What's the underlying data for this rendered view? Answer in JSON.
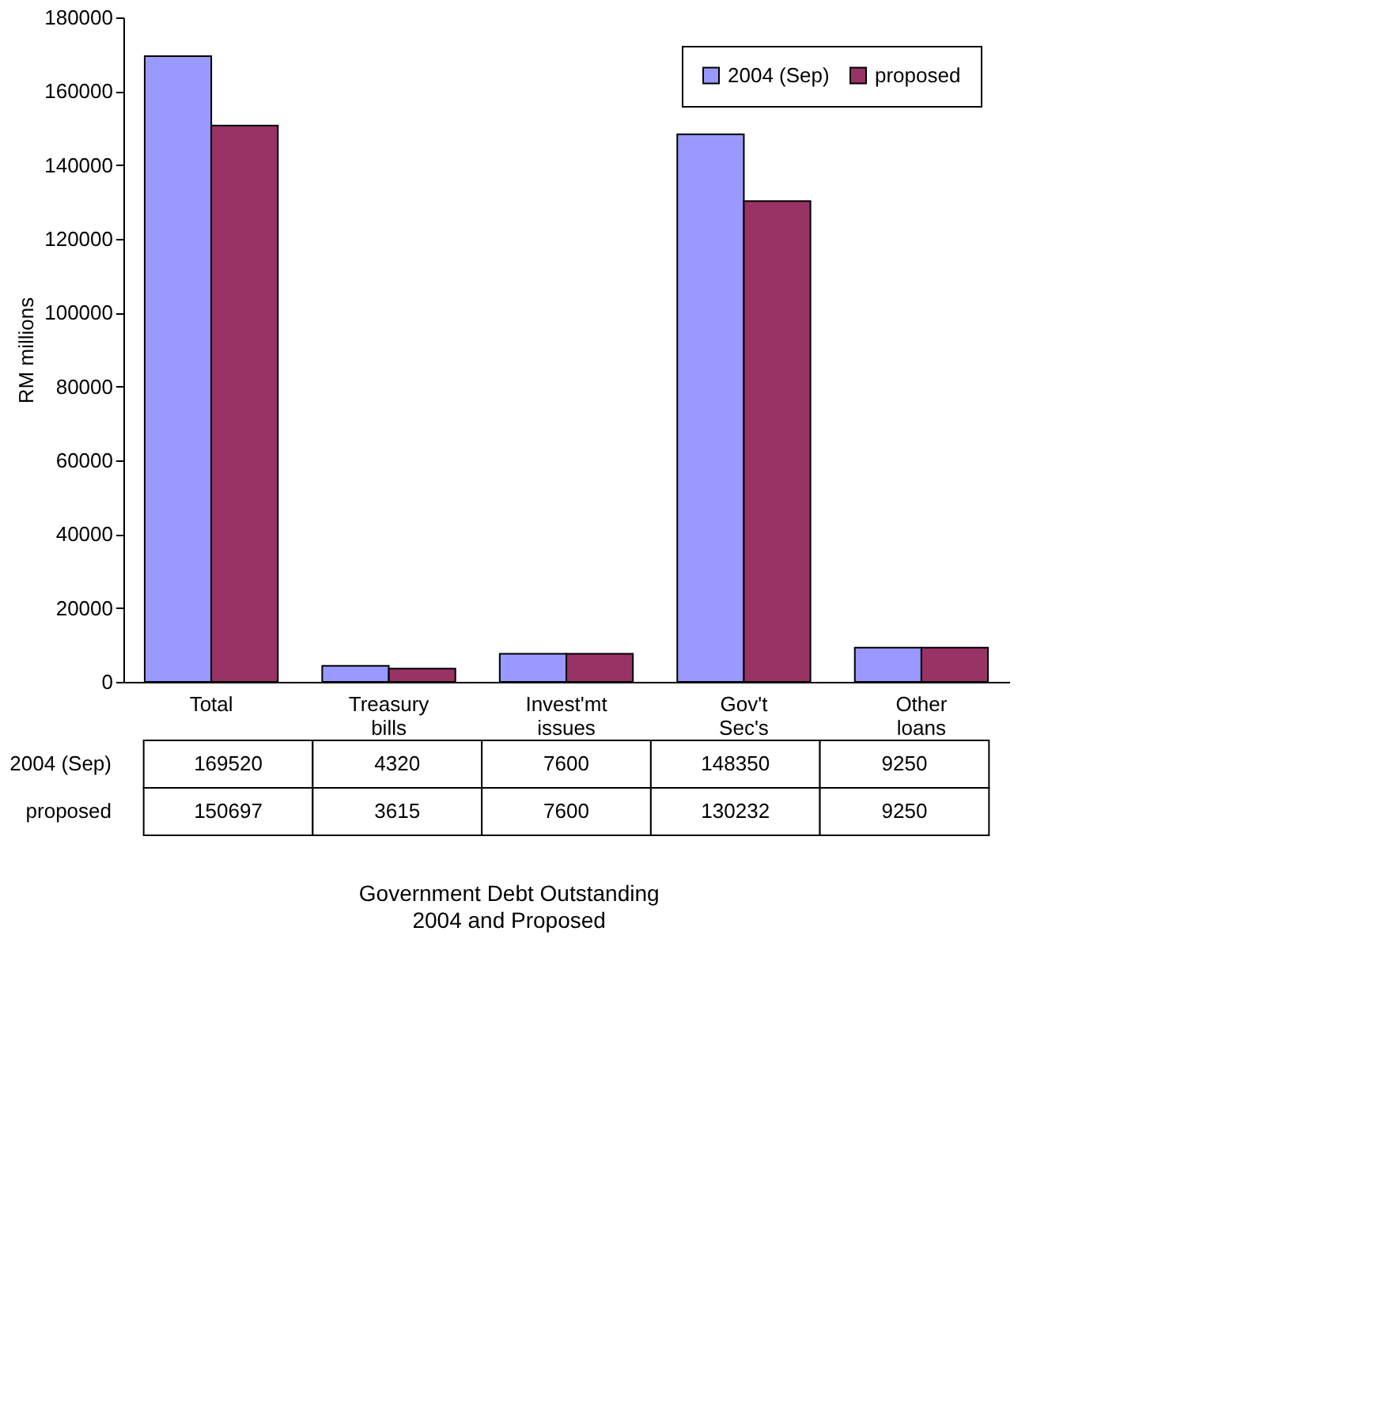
{
  "chart_data": {
    "type": "bar",
    "title": "Government Debt Outstanding",
    "subtitle": "2004 and Proposed",
    "ylabel": "RM millions",
    "categories": [
      "Total",
      "Treasury bills",
      "Invest'mt issues",
      "Gov't Sec's",
      "Other loans"
    ],
    "series": [
      {
        "name": "2004 (Sep)",
        "color": "#9999ff",
        "values": [
          169520,
          4320,
          7600,
          148350,
          9250
        ]
      },
      {
        "name": "proposed",
        "color": "#993366",
        "values": [
          150697,
          3615,
          7600,
          130232,
          9250
        ]
      }
    ],
    "ylim": [
      0,
      180000
    ],
    "yticks": [
      0,
      20000,
      40000,
      60000,
      80000,
      100000,
      120000,
      140000,
      160000,
      180000
    ],
    "grid": false,
    "legend": "top right",
    "data_labels": true
  }
}
